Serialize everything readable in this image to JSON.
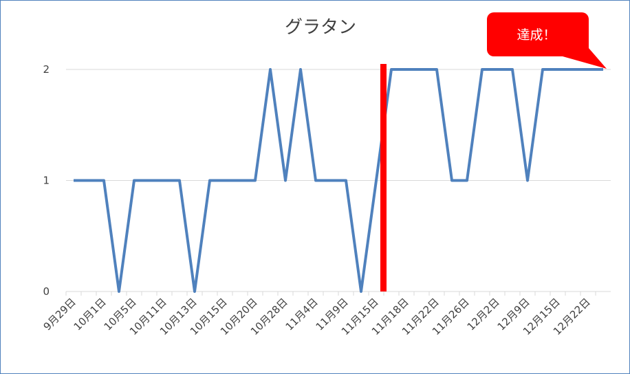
{
  "chart_data": {
    "type": "line",
    "title": "グラタン",
    "annotation": "達成！",
    "categories": [
      "9月29日",
      null,
      "10月1日",
      null,
      "10月5日",
      null,
      "10月11日",
      null,
      "10月13日",
      null,
      "10月15日",
      null,
      "10月20日",
      null,
      "10月28日",
      null,
      "11月4日",
      null,
      "11月9日",
      null,
      "11月15日",
      null,
      "11月18日",
      null,
      "11月22日",
      null,
      "11月26日",
      null,
      "12月2日",
      null,
      "12月9日",
      null,
      "12月15日",
      null,
      "12月22日",
      null
    ],
    "series": [
      {
        "color": "#4f81bd",
        "values": [
          1,
          1,
          1,
          0,
          1,
          1,
          1,
          1,
          0,
          1,
          1,
          1,
          1,
          2,
          1,
          2,
          1,
          1,
          1,
          0,
          1,
          2,
          2,
          2,
          2,
          1,
          1,
          2,
          2,
          2,
          1,
          2,
          2,
          2,
          2,
          2
        ]
      }
    ],
    "ylim": [
      0,
      2
    ],
    "yticks": [
      0,
      1,
      2
    ],
    "grid": true
  }
}
